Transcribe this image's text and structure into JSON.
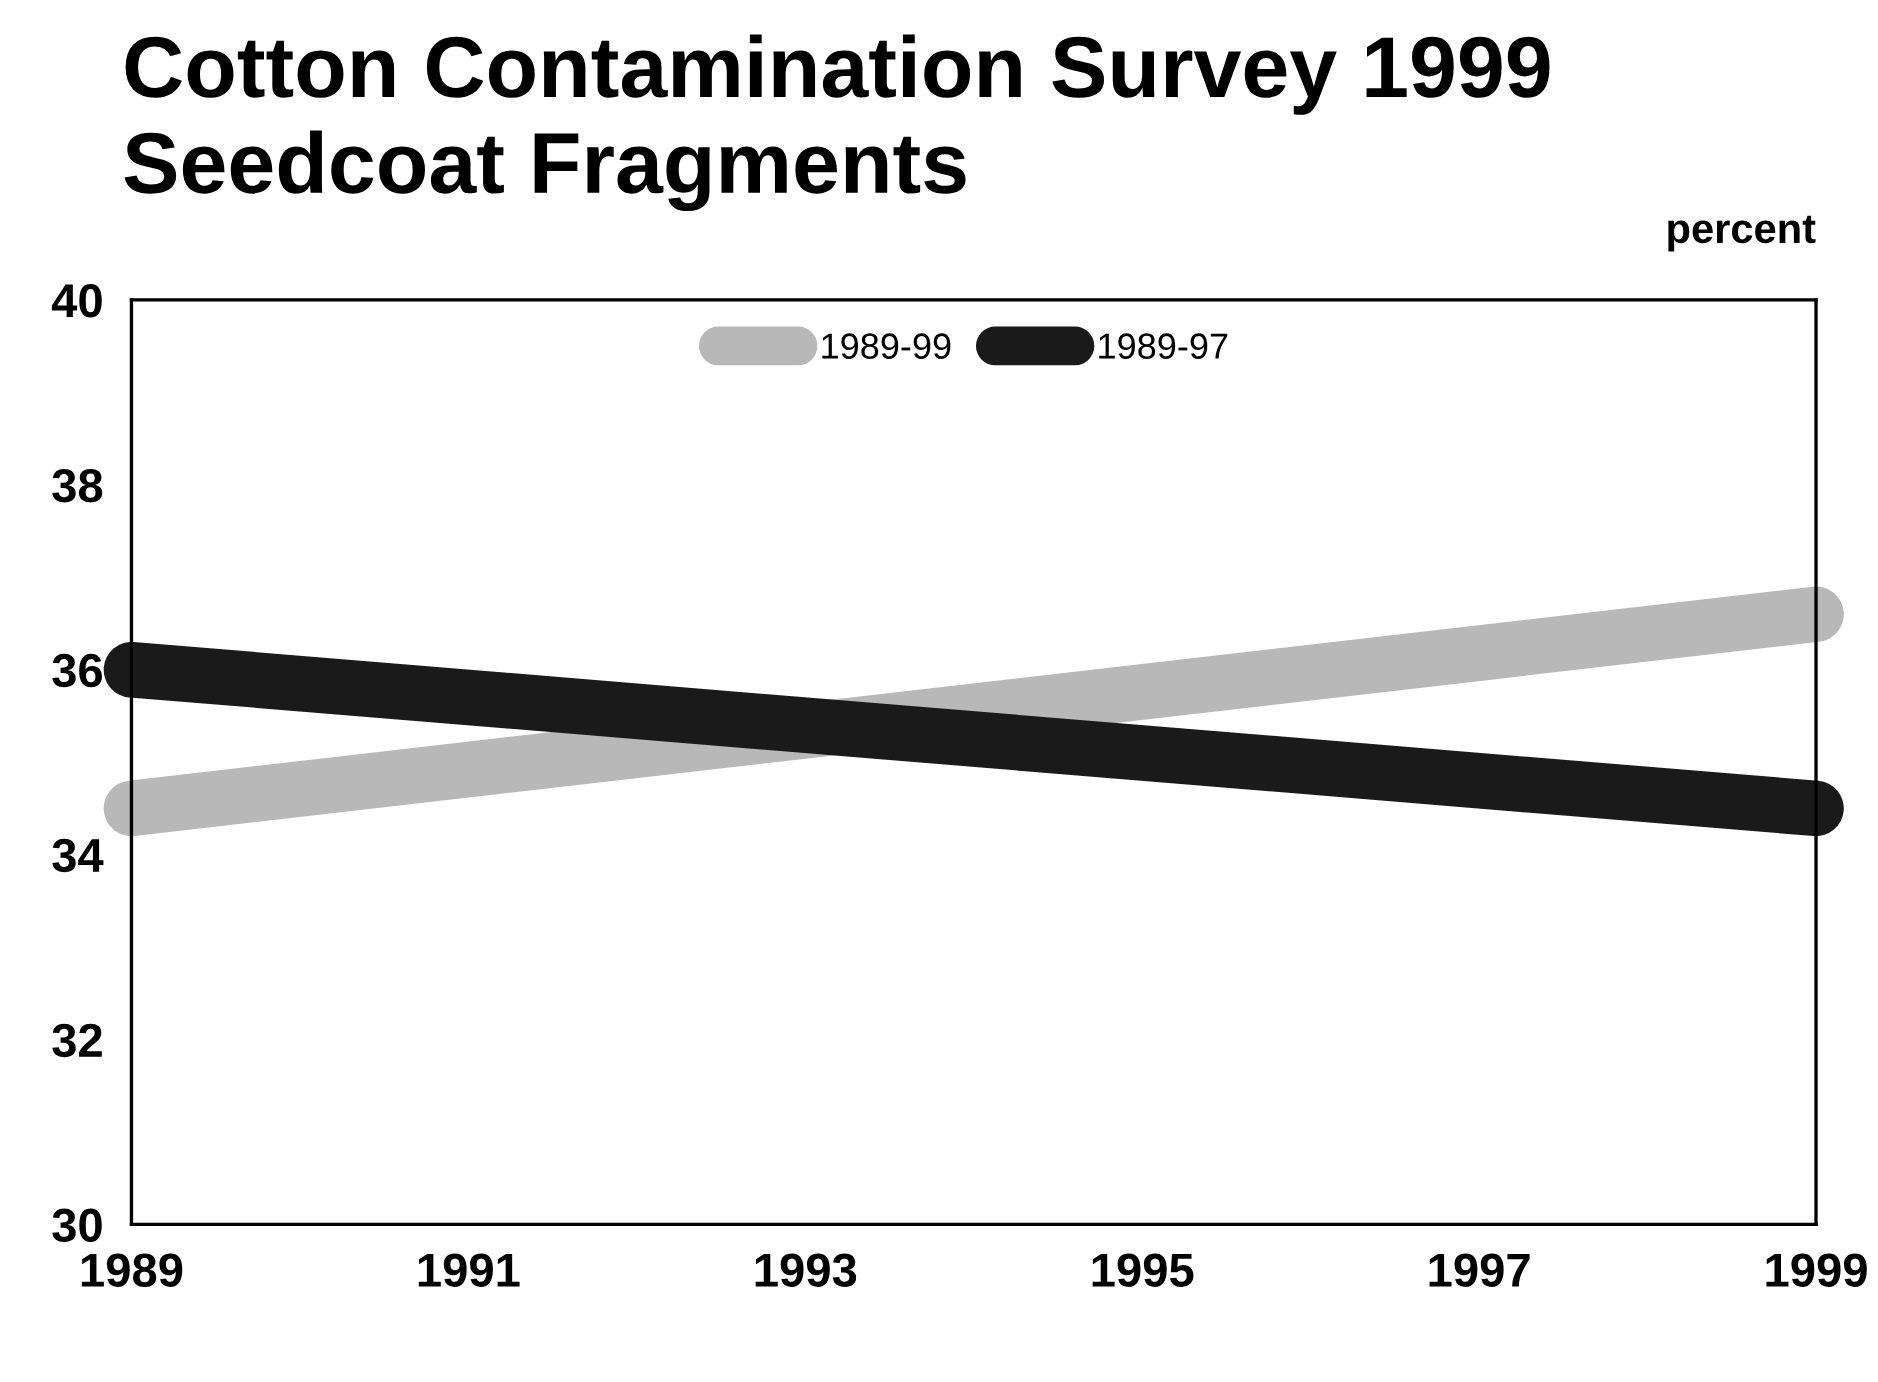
{
  "chart_data": {
    "type": "line",
    "title": "Cotton Contamination Survey 1999\nSeedcoat Fragments",
    "ylabel": "percent",
    "x": [
      1989,
      1999
    ],
    "series": [
      {
        "name": "1989-99",
        "color": "#b8b8b8",
        "values": [
          34.5,
          36.6
        ]
      },
      {
        "name": "1989-97",
        "color": "#1a1a1a",
        "values": [
          36.0,
          34.5
        ]
      }
    ],
    "xlim": [
      1989,
      1999
    ],
    "xticks": [
      1989,
      1991,
      1993,
      1995,
      1997,
      1999
    ],
    "ylim": [
      30,
      40
    ],
    "yticks": [
      30,
      32,
      34,
      36,
      38,
      40
    ],
    "grid": false,
    "legend": "top",
    "line_style": "solid"
  }
}
